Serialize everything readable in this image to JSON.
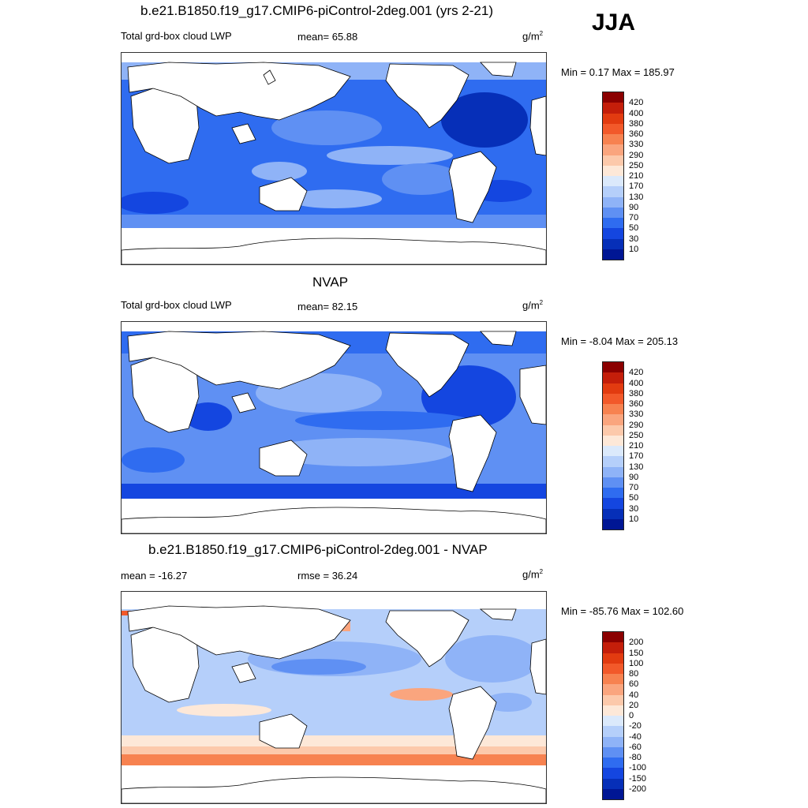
{
  "season": "JJA",
  "units_text": "g/m",
  "units_sup": "2",
  "panels": [
    {
      "title": "b.e21.B1850.f19_g17.CMIP6-piControl-2deg.001 (yrs 2-21)",
      "left_label": "Total grd-box cloud LWP",
      "stat_label": "mean=  65.88",
      "minmax": "Min =   0.17 Max = 185.97",
      "field": "model"
    },
    {
      "title": "NVAP",
      "left_label": "Total grd-box cloud LWP",
      "stat_label": "mean=  82.15",
      "minmax": "Min =  -8.04 Max = 205.13",
      "field": "obs"
    },
    {
      "title": "b.e21.B1850.f19_g17.CMIP6-piControl-2deg.001 - NVAP",
      "left_label": "mean = -16.27",
      "stat_label": "rmse =  36.24",
      "minmax": "Min = -85.76 Max = 102.60",
      "field": "diff"
    }
  ],
  "colorbars": {
    "absolute": {
      "labels": [
        "420",
        "400",
        "380",
        "360",
        "330",
        "290",
        "250",
        "210",
        "170",
        "130",
        "90",
        "70",
        "50",
        "30",
        "10"
      ],
      "colors": [
        "#8b0000",
        "#c41e0a",
        "#e23b10",
        "#f2592a",
        "#f78250",
        "#faa57e",
        "#fcc9ab",
        "#fde8d8",
        "#dbe9fb",
        "#b5cffa",
        "#8fb3f7",
        "#5f90f3",
        "#2f6cf0",
        "#1446e0",
        "#062fb8",
        "#001694"
      ]
    },
    "difference": {
      "labels": [
        "200",
        "150",
        "100",
        "80",
        "60",
        "40",
        "20",
        "0",
        "-20",
        "-40",
        "-60",
        "-80",
        "-100",
        "-150",
        "-200"
      ],
      "colors": [
        "#8b0000",
        "#c41e0a",
        "#e23b10",
        "#f2592a",
        "#f78250",
        "#faa57e",
        "#fcc9ab",
        "#fde8d8",
        "#dbe9fb",
        "#b5cffa",
        "#8fb3f7",
        "#5f90f3",
        "#2f6cf0",
        "#1446e0",
        "#062fb8",
        "#001694"
      ]
    }
  }
}
